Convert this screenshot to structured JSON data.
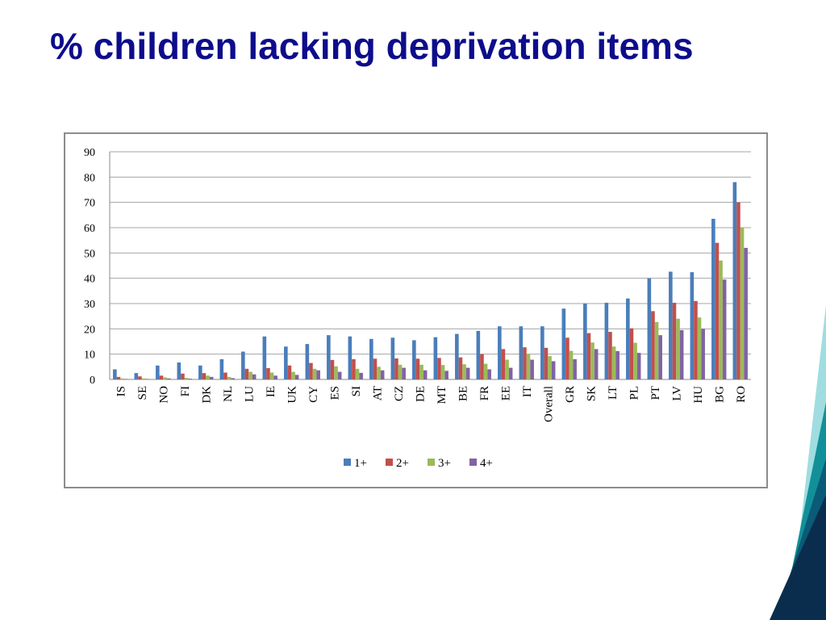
{
  "slide": {
    "title": "% children lacking deprivation items",
    "title_color": "#0d0d8c"
  },
  "decoration": {
    "colors": [
      "#0b2d4d",
      "#0a5a78",
      "#12909a",
      "#9fdde0"
    ]
  },
  "chart_data": {
    "type": "bar",
    "title": "",
    "xlabel": "",
    "ylabel": "",
    "ylim": [
      0,
      90
    ],
    "yticks": [
      0,
      10,
      20,
      30,
      40,
      50,
      60,
      70,
      80,
      90
    ],
    "grid": true,
    "legend_position": "bottom",
    "categories": [
      "IS",
      "SE",
      "NO",
      "FI",
      "DK",
      "NL",
      "LU",
      "IE",
      "UK",
      "CY",
      "ES",
      "SI",
      "AT",
      "CZ",
      "DE",
      "MT",
      "BE",
      "FR",
      "EE",
      "IT",
      "Overall",
      "GR",
      "SK",
      "LT",
      "PL",
      "PT",
      "LV",
      "HU",
      "BG",
      "RO"
    ],
    "series": [
      {
        "name": "1+",
        "color": "#4a7ebb",
        "values": [
          4,
          2.5,
          5.5,
          6.7,
          5.5,
          8,
          11,
          17,
          13,
          14,
          17.5,
          17,
          16,
          16.5,
          15.5,
          16.7,
          18,
          19.2,
          21,
          21,
          21,
          28,
          30,
          30.3,
          32,
          40,
          42.6,
          42.4,
          63.5,
          78
        ]
      },
      {
        "name": "2+",
        "color": "#c0504d",
        "values": [
          1,
          1.2,
          1.5,
          2.3,
          2.5,
          2.7,
          4.2,
          4.5,
          5.5,
          6.5,
          7.7,
          8,
          8.2,
          8.3,
          8.2,
          8.5,
          8.7,
          10,
          12,
          12.7,
          12.5,
          16.5,
          18.3,
          18.8,
          20.2,
          27,
          30.3,
          31,
          54,
          70
        ]
      },
      {
        "name": "3+",
        "color": "#9bbb59",
        "values": [
          0.4,
          0.4,
          0.8,
          0.6,
          1.5,
          1,
          3,
          2.7,
          3,
          4.2,
          5.2,
          4.2,
          5,
          5.8,
          5.8,
          5.7,
          6,
          6.2,
          7.8,
          10,
          9.2,
          11.3,
          14.6,
          13,
          14.5,
          22.7,
          24,
          24.5,
          47,
          60
        ]
      },
      {
        "name": "4+",
        "color": "#8064a2",
        "values": [
          0.2,
          0.2,
          0.4,
          0.3,
          1,
          0.5,
          2,
          1.5,
          1.8,
          3.6,
          3,
          2.6,
          3.6,
          4.6,
          3.6,
          3.4,
          4.6,
          4,
          4.6,
          7.8,
          7.2,
          8,
          12,
          11.2,
          10.5,
          17.5,
          19.5,
          20,
          39.5,
          52
        ]
      }
    ]
  }
}
